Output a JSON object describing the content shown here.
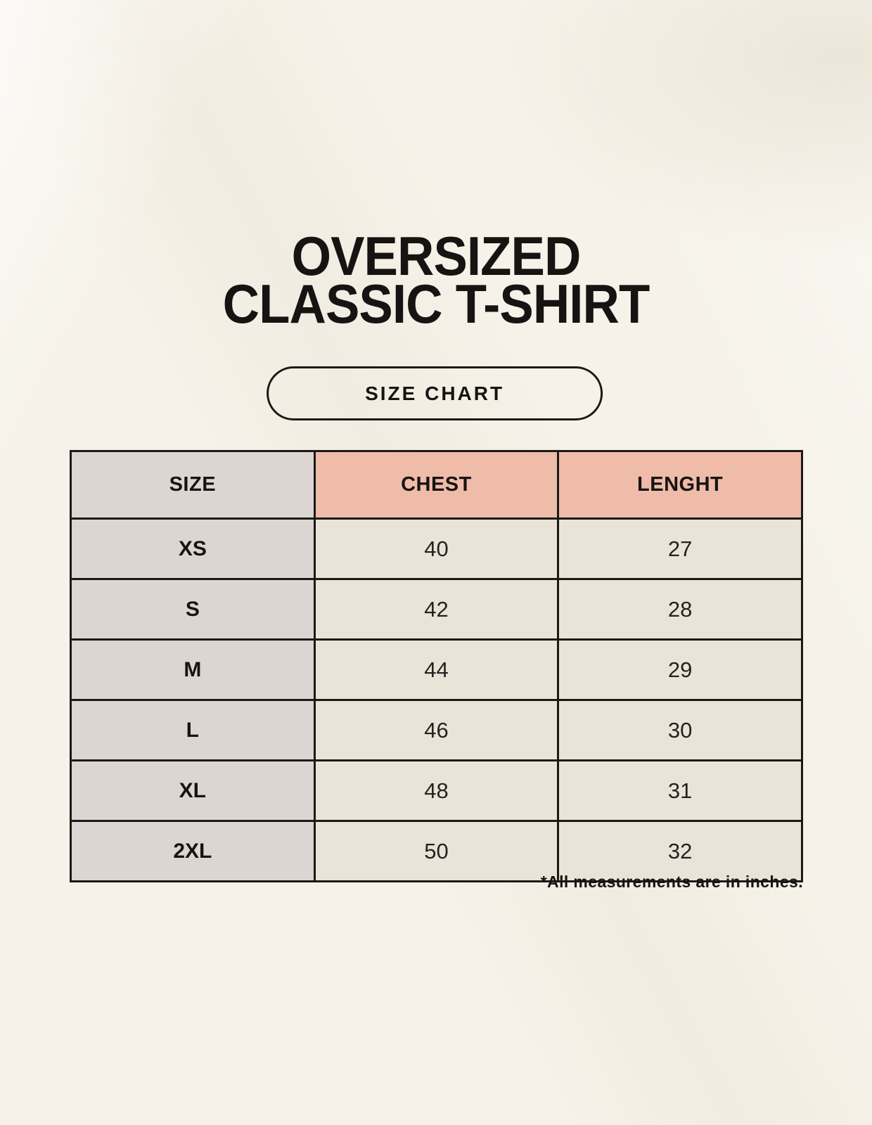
{
  "header": {
    "title_line1": "OVERSIZED",
    "title_line2": "CLASSIC T-SHIRT",
    "size_chart_label": "SIZE CHART"
  },
  "chart_data": {
    "type": "table",
    "title": "OVERSIZED CLASSIC T-SHIRT",
    "columns": [
      "SIZE",
      "CHEST",
      "LENGHT"
    ],
    "rows": [
      [
        "XS",
        "40",
        "27"
      ],
      [
        "S",
        "42",
        "28"
      ],
      [
        "M",
        "44",
        "29"
      ],
      [
        "L",
        "46",
        "30"
      ],
      [
        "XL",
        "48",
        "31"
      ],
      [
        "2XL",
        "50",
        "32"
      ]
    ],
    "note": "*All measurements are in inches.",
    "units": "inches"
  },
  "footnote": {
    "text": "*All measurements are in inches."
  },
  "colors": {
    "background": "#f6f2e9",
    "header_pink": "#efbca9",
    "size_col_gray": "#dcd6d2",
    "cell_beige": "#eae3d8",
    "border_black": "#1b1916",
    "text_black": "#161412"
  }
}
